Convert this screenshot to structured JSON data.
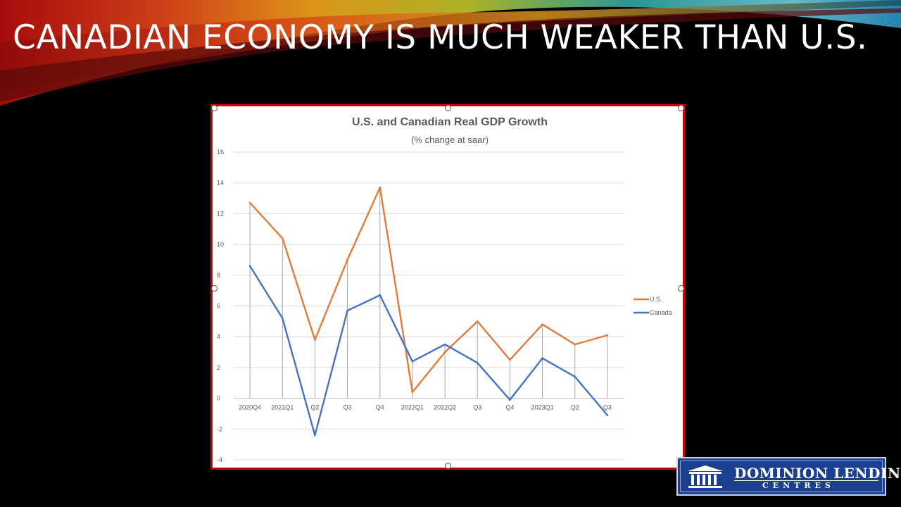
{
  "slide": {
    "title": "CANADIAN ECONOMY IS MUCH WEAKER THAN U.S.",
    "colors": {
      "background": "#000000",
      "title": "#ffffff",
      "frame_border": "#d40000"
    }
  },
  "logo": {
    "name": "DOMINION LENDING",
    "sub": "CENTRES",
    "icon": "building-columns-icon",
    "color": "#1c3f8f"
  },
  "chart_data": {
    "type": "line",
    "title": "U.S. and Canadian Real GDP Growth",
    "subtitle": "(% change at saar)",
    "categories": [
      "2020Q4",
      "2021Q1",
      "Q2",
      "Q3",
      "Q4",
      "2022Q1",
      "2022Q2",
      "Q3",
      "Q4",
      "2023Q1",
      "Q2",
      "Q3"
    ],
    "series": [
      {
        "name": "U.S.",
        "color": "#e07b39",
        "values": [
          12.7,
          10.4,
          3.8,
          9.0,
          13.7,
          0.4,
          3.0,
          5.0,
          2.5,
          4.8,
          3.5,
          4.1
        ]
      },
      {
        "name": "Canada",
        "color": "#4472c4",
        "values": [
          8.6,
          5.2,
          -2.4,
          5.7,
          6.7,
          2.4,
          3.5,
          2.3,
          -0.1,
          2.6,
          1.4,
          -1.1
        ]
      }
    ],
    "yticks": [
      16,
      14,
      12,
      10,
      8,
      6,
      4,
      2,
      0,
      -2,
      -4
    ],
    "ylim": [
      -4,
      16
    ],
    "grid": true,
    "drop_lines": true,
    "legend": "right"
  }
}
